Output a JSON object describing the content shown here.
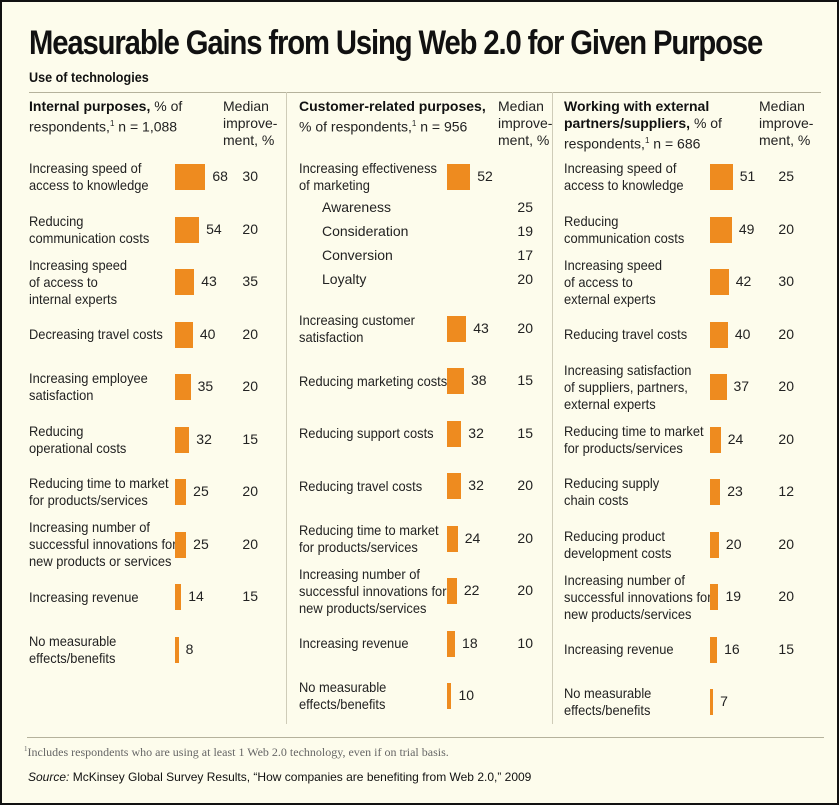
{
  "title": "Measurable Gains from Using Web 2.0 for Given Purpose",
  "subtitle": "Use of technologies",
  "footnote": {
    "marker": "1",
    "text": "Includes respondents who are using at least 1 Web 2.0 technology, even if on trial basis."
  },
  "source": {
    "label": "Source:",
    "text": "McKinsey Global Survey Results, “How companies are benefiting from Web 2.0,” 2009"
  },
  "colors": {
    "bar": "#ee8b1f",
    "background": "#fdfcec"
  },
  "chart_data": [
    {
      "type": "bar",
      "title": "Internal purposes",
      "header_bold": "Internal purposes,",
      "header_rest": "% of respondents,",
      "footnote_ref": "1",
      "n_text": "n = 1,088",
      "median_header": [
        "Median",
        "improve-",
        "ment, %"
      ],
      "rows": [
        {
          "label": [
            "Increasing speed of",
            "access to knowledge"
          ],
          "value": 68,
          "median": 30
        },
        {
          "label": [
            "Reducing",
            "communication costs"
          ],
          "value": 54,
          "median": 20
        },
        {
          "label": [
            "Increasing speed",
            "of access to",
            "internal experts"
          ],
          "value": 43,
          "median": 35
        },
        {
          "label": [
            "Decreasing travel costs"
          ],
          "value": 40,
          "median": 20
        },
        {
          "label": [
            "Increasing employee",
            "satisfaction"
          ],
          "value": 35,
          "median": 20
        },
        {
          "label": [
            "Reducing",
            "operational costs"
          ],
          "value": 32,
          "median": 15
        },
        {
          "label": [
            "Reducing time to market",
            "for products/services"
          ],
          "value": 25,
          "median": 20
        },
        {
          "label": [
            "Increasing number of",
            "successful innovations for",
            "new products or services"
          ],
          "value": 25,
          "median": 20
        },
        {
          "label": [
            "Increasing revenue"
          ],
          "value": 14,
          "median": 15
        },
        {
          "label": [
            "No measurable",
            "effects/benefits"
          ],
          "value": 8,
          "median": null
        }
      ]
    },
    {
      "type": "bar",
      "title": "Customer-related purposes",
      "header_bold": "Customer-related purposes,",
      "header_rest": "% of respondents,",
      "footnote_ref": "1",
      "n_text": "n = 956",
      "median_header": [
        "Median",
        "improve-",
        "ment, %"
      ],
      "rows": [
        {
          "label": [
            "Increasing effectiveness",
            "of marketing"
          ],
          "value": 52,
          "median": null,
          "sub": [
            {
              "label": "Awareness",
              "median": 25
            },
            {
              "label": "Consideration",
              "median": 19
            },
            {
              "label": "Conversion",
              "median": 17
            },
            {
              "label": "Loyalty",
              "median": 20
            }
          ]
        },
        {
          "label": [
            "Increasing customer",
            "satisfaction"
          ],
          "value": 43,
          "median": 20
        },
        {
          "label": [
            "Reducing marketing costs"
          ],
          "value": 38,
          "median": 15
        },
        {
          "label": [
            "Reducing support costs"
          ],
          "value": 32,
          "median": 15
        },
        {
          "label": [
            "Reducing travel costs"
          ],
          "value": 32,
          "median": 20
        },
        {
          "label": [
            "Reducing time to market",
            "for products/services"
          ],
          "value": 24,
          "median": 20
        },
        {
          "label": [
            "Increasing number of",
            "successful innovations for",
            "new products/services"
          ],
          "value": 22,
          "median": 20
        },
        {
          "label": [
            "Increasing revenue"
          ],
          "value": 18,
          "median": 10
        },
        {
          "label": [
            "No measurable",
            "effects/benefits"
          ],
          "value": 10,
          "median": null
        }
      ]
    },
    {
      "type": "bar",
      "title": "Working with external partners/suppliers",
      "header_bold": "Working with external partners/suppliers,",
      "header_rest": "% of respondents,",
      "footnote_ref": "1",
      "n_text": "n = 686",
      "median_header": [
        "Median",
        "improve-",
        "ment, %"
      ],
      "rows": [
        {
          "label": [
            "Increasing speed of",
            "access to knowledge"
          ],
          "value": 51,
          "median": 25
        },
        {
          "label": [
            "Reducing",
            "communication costs"
          ],
          "value": 49,
          "median": 20
        },
        {
          "label": [
            "Increasing speed",
            "of access to",
            "external experts"
          ],
          "value": 42,
          "median": 30
        },
        {
          "label": [
            "Reducing travel costs"
          ],
          "value": 40,
          "median": 20
        },
        {
          "label": [
            "Increasing satisfaction",
            "of suppliers, partners,",
            "external experts"
          ],
          "value": 37,
          "median": 20
        },
        {
          "label": [
            "Reducing time to market",
            "for products/services"
          ],
          "value": 24,
          "median": 20
        },
        {
          "label": [
            "Reducing supply",
            "chain costs"
          ],
          "value": 23,
          "median": 12
        },
        {
          "label": [
            "Reducing product",
            "development costs"
          ],
          "value": 20,
          "median": 20
        },
        {
          "label": [
            "Increasing number of",
            "successful innovations for",
            "new products/services"
          ],
          "value": 19,
          "median": 20
        },
        {
          "label": [
            "Increasing revenue"
          ],
          "value": 16,
          "median": 15
        },
        {
          "label": [
            "No measurable",
            "effects/benefits"
          ],
          "value": 7,
          "median": null
        }
      ]
    }
  ]
}
